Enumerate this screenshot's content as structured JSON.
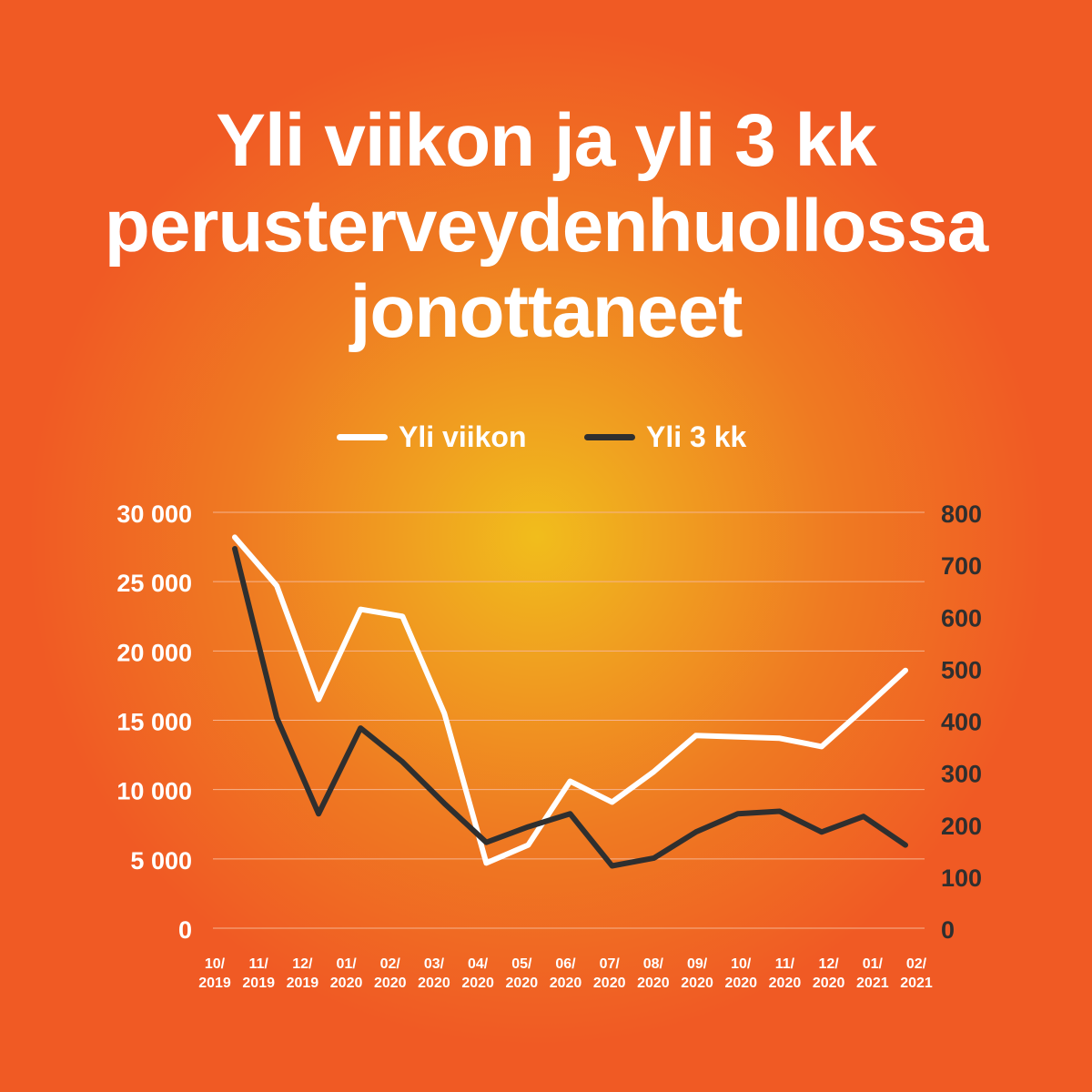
{
  "header": {
    "title_lines": [
      "Yli viikon ja yli 3 kk",
      "perusterveydenhuollossa",
      "jonottaneet"
    ]
  },
  "colors": {
    "series_week": "#ffffff",
    "series_3m": "#2f2f2f",
    "left_axis_text": "#ffffff",
    "right_axis_text": "#2f2f2f",
    "gridline": "#f6b48f"
  },
  "chart_data": {
    "type": "line",
    "title": "Yli viikon ja yli 3 kk perusterveydenhuollossa jonottaneet",
    "legend_position": "top-center",
    "grid": true,
    "categories": [
      "10/2019",
      "11/2019",
      "12/2019",
      "01/2020",
      "02/2020",
      "03/2020",
      "04/2020",
      "05/2020",
      "06/2020",
      "07/2020",
      "08/2020",
      "09/2020",
      "10/2020",
      "11/2020",
      "12/2020",
      "01/2021",
      "02/2021"
    ],
    "category_labels": [
      [
        "10/",
        "2019"
      ],
      [
        "11/",
        "2019"
      ],
      [
        "12/",
        "2019"
      ],
      [
        "01/",
        "2020"
      ],
      [
        "02/",
        "2020"
      ],
      [
        "03/",
        "2020"
      ],
      [
        "04/",
        "2020"
      ],
      [
        "05/",
        "2020"
      ],
      [
        "06/",
        "2020"
      ],
      [
        "07/",
        "2020"
      ],
      [
        "08/",
        "2020"
      ],
      [
        "09/",
        "2020"
      ],
      [
        "10/",
        "2020"
      ],
      [
        "11/",
        "2020"
      ],
      [
        "12/",
        "2020"
      ],
      [
        "01/",
        "2021"
      ],
      [
        "02/",
        "2021"
      ]
    ],
    "y_left": {
      "ylim": [
        0,
        30000
      ],
      "ticks": [
        "0",
        "5 000",
        "10 000",
        "15 000",
        "20 000",
        "25 000",
        "30 000"
      ]
    },
    "y_right": {
      "ylim": [
        0,
        800
      ],
      "ticks": [
        "0",
        "100",
        "200",
        "300",
        "400",
        "500",
        "600",
        "700",
        "800"
      ]
    },
    "series": [
      {
        "name": "Yli viikon",
        "axis": "left",
        "values": [
          28200,
          24700,
          16500,
          23000,
          22500,
          15500,
          4700,
          6000,
          10600,
          9100,
          11300,
          13900,
          13800,
          13700,
          13100,
          15800,
          18600
        ]
      },
      {
        "name": "Yli 3 kk",
        "axis": "right",
        "values": [
          730,
          405,
          220,
          385,
          320,
          240,
          165,
          195,
          220,
          120,
          135,
          185,
          220,
          225,
          185,
          215,
          160
        ]
      }
    ]
  }
}
